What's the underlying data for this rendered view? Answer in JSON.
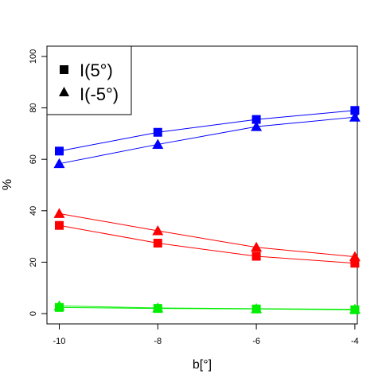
{
  "chart_data": {
    "type": "line",
    "xlabel": "b[°]",
    "ylabel": "%",
    "xlim": [
      -10.25,
      -3.95
    ],
    "ylim": [
      -4,
      104
    ],
    "xticks": [
      -10,
      -8,
      -6,
      -4
    ],
    "xtick_labels": [
      "-10",
      "-8",
      "-6",
      "-4"
    ],
    "yticks": [
      0,
      20,
      40,
      60,
      80,
      100
    ],
    "ytick_labels": [
      "0",
      "20",
      "40",
      "60",
      "80",
      "100"
    ],
    "grid": false,
    "legend_position": "top-left",
    "legend": [
      {
        "label": "I(5°)",
        "marker": "square"
      },
      {
        "label": "I(-5°)",
        "marker": "triangle"
      }
    ],
    "x": [
      -10,
      -8,
      -6,
      -4
    ],
    "series": [
      {
        "color": "#0000ff",
        "marker": "square",
        "values": [
          63.2,
          70.5,
          75.5,
          79.0
        ]
      },
      {
        "color": "#0000ff",
        "marker": "triangle",
        "values": [
          58.3,
          65.8,
          72.7,
          76.4
        ]
      },
      {
        "color": "#ff0000",
        "marker": "square",
        "values": [
          34.3,
          27.4,
          22.3,
          19.6
        ]
      },
      {
        "color": "#ff0000",
        "marker": "triangle",
        "values": [
          38.9,
          32.2,
          25.8,
          22.1
        ]
      },
      {
        "color": "#00ee00",
        "marker": "square",
        "values": [
          2.4,
          2.0,
          1.8,
          1.5
        ]
      },
      {
        "color": "#00ee00",
        "marker": "triangle",
        "values": [
          3.0,
          2.2,
          1.9,
          1.7
        ]
      }
    ]
  }
}
